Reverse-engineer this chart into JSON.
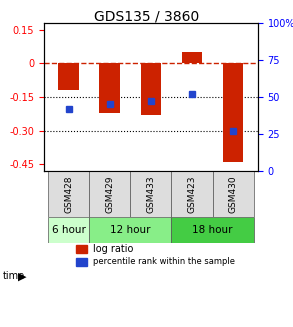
{
  "title": "GDS135 / 3860",
  "samples": [
    "GSM428",
    "GSM429",
    "GSM433",
    "GSM423",
    "GSM430"
  ],
  "log_ratios": [
    -0.12,
    -0.22,
    -0.23,
    0.05,
    -0.44
  ],
  "percentile_ranks": [
    0.42,
    0.45,
    0.47,
    0.52,
    0.27
  ],
  "time_groups": [
    {
      "label": "6 hour",
      "samples": [
        "GSM428"
      ],
      "color": "#ccffcc"
    },
    {
      "label": "12 hour",
      "samples": [
        "GSM429",
        "GSM433"
      ],
      "color": "#88ee88"
    },
    {
      "label": "18 hour",
      "samples": [
        "GSM423",
        "GSM430"
      ],
      "color": "#44cc44"
    }
  ],
  "ylim": [
    -0.48,
    0.18
  ],
  "yticks": [
    0.15,
    0,
    -0.15,
    -0.3,
    -0.45
  ],
  "ytick_labels": [
    "0.15",
    "0",
    "-0.15",
    "-0.30",
    "-0.45"
  ],
  "y2ticks": [
    1.0,
    0.75,
    0.5,
    0.25,
    0.0
  ],
  "y2tick_labels": [
    "100%",
    "75",
    "50",
    "25",
    "0"
  ],
  "bar_color": "#cc2200",
  "dot_color": "#2244cc",
  "hline_y": 0,
  "hline_color": "#cc2200",
  "dotline1": -0.15,
  "dotline2": -0.3,
  "bar_width": 0.5,
  "background_color": "#ffffff",
  "plot_bg": "#ffffff"
}
